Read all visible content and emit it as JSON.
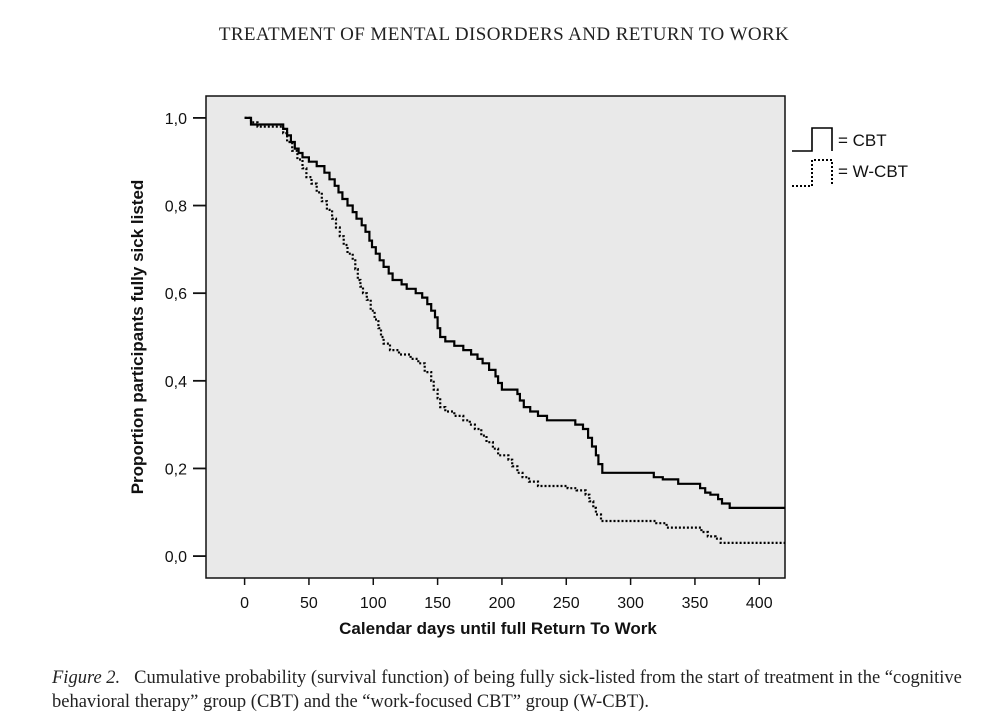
{
  "header": {
    "running_title": "TREATMENT OF MENTAL DISORDERS AND RETURN TO WORK"
  },
  "caption": {
    "label": "Figure 2.",
    "text": "Cumulative probability (survival function) of being fully sick-listed from the start of treatment in the “cognitive behavioral therapy” group (CBT) and the “work-focused CBT” group (W-CBT)."
  },
  "chart_data": {
    "type": "line",
    "subtype": "step (Kaplan-Meier survival curves)",
    "xlabel": "Calendar days until full Return To Work",
    "ylabel": "Proportion participants fully sick listed",
    "xlim": [
      -30,
      420
    ],
    "ylim": [
      -0.05,
      1.05
    ],
    "x_ticks": [
      0,
      50,
      100,
      150,
      200,
      250,
      300,
      350,
      400
    ],
    "x_tick_labels": [
      "0",
      "50",
      "100",
      "150",
      "200",
      "250",
      "300",
      "350",
      "400"
    ],
    "y_ticks": [
      0.0,
      0.2,
      0.4,
      0.6,
      0.8,
      1.0
    ],
    "y_tick_labels": [
      "0,0",
      "0,2",
      "0,4",
      "0,6",
      "0,8",
      "1,0"
    ],
    "legend_position": "top-right, outside plot",
    "plot_background": "#e9e9e9",
    "grid": false,
    "series": [
      {
        "name": "CBT",
        "legend_label": "= CBT",
        "style": "solid",
        "color": "#000000",
        "points": [
          [
            0,
            1.0
          ],
          [
            5,
            0.985
          ],
          [
            30,
            0.975
          ],
          [
            33,
            0.96
          ],
          [
            36,
            0.945
          ],
          [
            39,
            0.93
          ],
          [
            42,
            0.92
          ],
          [
            45,
            0.91
          ],
          [
            50,
            0.9
          ],
          [
            56,
            0.89
          ],
          [
            62,
            0.875
          ],
          [
            66,
            0.86
          ],
          [
            70,
            0.845
          ],
          [
            73,
            0.83
          ],
          [
            76,
            0.815
          ],
          [
            80,
            0.8
          ],
          [
            84,
            0.785
          ],
          [
            87,
            0.77
          ],
          [
            91,
            0.755
          ],
          [
            94,
            0.74
          ],
          [
            97,
            0.72
          ],
          [
            99,
            0.705
          ],
          [
            102,
            0.69
          ],
          [
            105,
            0.675
          ],
          [
            108,
            0.66
          ],
          [
            112,
            0.645
          ],
          [
            115,
            0.63
          ],
          [
            122,
            0.62
          ],
          [
            126,
            0.61
          ],
          [
            133,
            0.6
          ],
          [
            138,
            0.59
          ],
          [
            142,
            0.575
          ],
          [
            145,
            0.56
          ],
          [
            148,
            0.545
          ],
          [
            150,
            0.52
          ],
          [
            152,
            0.5
          ],
          [
            156,
            0.49
          ],
          [
            163,
            0.48
          ],
          [
            170,
            0.47
          ],
          [
            176,
            0.46
          ],
          [
            181,
            0.45
          ],
          [
            185,
            0.44
          ],
          [
            190,
            0.425
          ],
          [
            195,
            0.41
          ],
          [
            197,
            0.395
          ],
          [
            200,
            0.38
          ],
          [
            212,
            0.37
          ],
          [
            214,
            0.355
          ],
          [
            217,
            0.34
          ],
          [
            222,
            0.33
          ],
          [
            228,
            0.32
          ],
          [
            235,
            0.31
          ],
          [
            257,
            0.3
          ],
          [
            263,
            0.29
          ],
          [
            267,
            0.27
          ],
          [
            270,
            0.25
          ],
          [
            273,
            0.23
          ],
          [
            275,
            0.21
          ],
          [
            278,
            0.19
          ],
          [
            318,
            0.18
          ],
          [
            325,
            0.175
          ],
          [
            337,
            0.165
          ],
          [
            354,
            0.155
          ],
          [
            358,
            0.145
          ],
          [
            362,
            0.14
          ],
          [
            368,
            0.13
          ],
          [
            371,
            0.12
          ],
          [
            377,
            0.11
          ],
          [
            420,
            0.11
          ]
        ]
      },
      {
        "name": "W-CBT",
        "legend_label": "= W-CBT",
        "style": "dotted",
        "color": "#000000",
        "points": [
          [
            0,
            1.0
          ],
          [
            5,
            0.99
          ],
          [
            10,
            0.98
          ],
          [
            30,
            0.965
          ],
          [
            33,
            0.945
          ],
          [
            37,
            0.925
          ],
          [
            41,
            0.905
          ],
          [
            45,
            0.885
          ],
          [
            48,
            0.865
          ],
          [
            52,
            0.85
          ],
          [
            56,
            0.83
          ],
          [
            60,
            0.81
          ],
          [
            64,
            0.79
          ],
          [
            68,
            0.77
          ],
          [
            71,
            0.75
          ],
          [
            74,
            0.73
          ],
          [
            77,
            0.71
          ],
          [
            80,
            0.69
          ],
          [
            84,
            0.675
          ],
          [
            86,
            0.655
          ],
          [
            88,
            0.63
          ],
          [
            90,
            0.615
          ],
          [
            92,
            0.6
          ],
          [
            95,
            0.585
          ],
          [
            98,
            0.56
          ],
          [
            101,
            0.54
          ],
          [
            104,
            0.52
          ],
          [
            106,
            0.5
          ],
          [
            108,
            0.485
          ],
          [
            113,
            0.47
          ],
          [
            120,
            0.46
          ],
          [
            129,
            0.45
          ],
          [
            135,
            0.44
          ],
          [
            140,
            0.42
          ],
          [
            145,
            0.4
          ],
          [
            147,
            0.38
          ],
          [
            150,
            0.36
          ],
          [
            152,
            0.34
          ],
          [
            156,
            0.33
          ],
          [
            163,
            0.32
          ],
          [
            170,
            0.31
          ],
          [
            175,
            0.3
          ],
          [
            179,
            0.29
          ],
          [
            184,
            0.275
          ],
          [
            188,
            0.26
          ],
          [
            193,
            0.245
          ],
          [
            197,
            0.23
          ],
          [
            205,
            0.22
          ],
          [
            208,
            0.205
          ],
          [
            212,
            0.19
          ],
          [
            216,
            0.18
          ],
          [
            221,
            0.17
          ],
          [
            228,
            0.16
          ],
          [
            251,
            0.155
          ],
          [
            258,
            0.15
          ],
          [
            265,
            0.14
          ],
          [
            268,
            0.125
          ],
          [
            271,
            0.11
          ],
          [
            273,
            0.095
          ],
          [
            277,
            0.08
          ],
          [
            320,
            0.075
          ],
          [
            328,
            0.065
          ],
          [
            355,
            0.055
          ],
          [
            360,
            0.045
          ],
          [
            366,
            0.04
          ],
          [
            370,
            0.03
          ],
          [
            420,
            0.03
          ]
        ]
      }
    ]
  }
}
